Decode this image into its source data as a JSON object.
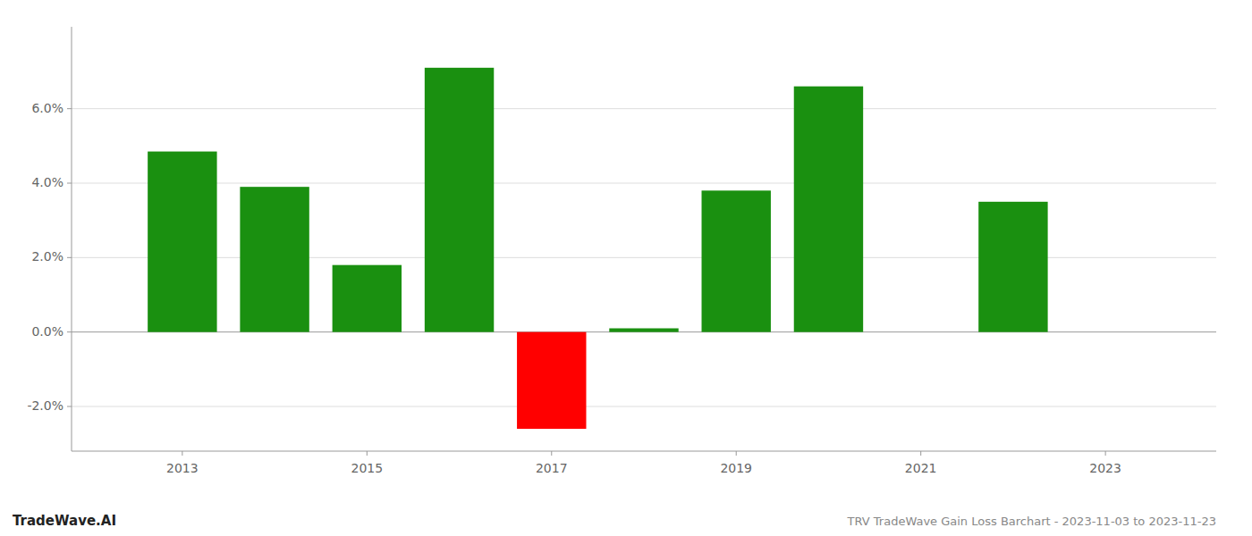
{
  "chart_data": {
    "type": "bar",
    "title": "TRV TradeWave Gain Loss Barchart - 2023-11-03 to 2023-11-23",
    "annotations": [
      "TradeWave.AI"
    ],
    "x": [
      2013,
      2014,
      2015,
      2016,
      2017,
      2018,
      2019,
      2020,
      2022
    ],
    "values": [
      0.0485,
      0.039,
      0.018,
      0.071,
      -0.026,
      0.001,
      0.038,
      0.066,
      0.035
    ],
    "colors": [
      "#1a9010",
      "#1a9010",
      "#1a9010",
      "#1a9010",
      "#ff0000",
      "#1a9010",
      "#1a9010",
      "#1a9010",
      "#1a9010"
    ],
    "xlim": [
      2011.8,
      2024.2
    ],
    "xticks": [
      2013,
      2015,
      2017,
      2019,
      2021,
      2023
    ],
    "ylim": [
      -0.032,
      0.082
    ],
    "yticks": [
      {
        "value": -0.02,
        "label": "-2.0%"
      },
      {
        "value": 0.0,
        "label": "0.0%"
      },
      {
        "value": 0.02,
        "label": "2.0%"
      },
      {
        "value": 0.04,
        "label": "4.0%"
      },
      {
        "value": 0.06,
        "label": "6.0%"
      }
    ],
    "grid": true
  }
}
